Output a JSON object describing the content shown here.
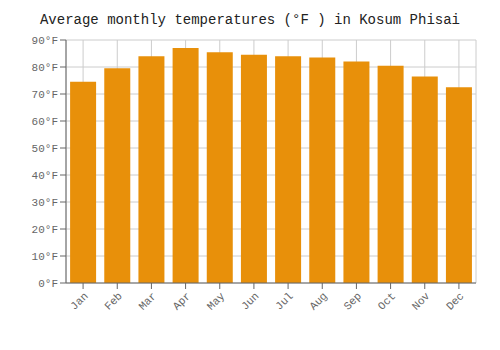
{
  "chart_data": {
    "type": "bar",
    "title": "Average monthly temperatures (°F ) in Kosum Phisai",
    "categories": [
      "Jan",
      "Feb",
      "Mar",
      "Apr",
      "May",
      "Jun",
      "Jul",
      "Aug",
      "Sep",
      "Oct",
      "Nov",
      "Dec"
    ],
    "values": [
      74.5,
      79.5,
      84.0,
      87.0,
      85.5,
      84.5,
      84.0,
      83.5,
      82.0,
      80.5,
      76.5,
      72.5
    ],
    "color": "#E8900A",
    "ylim": [
      0,
      90
    ],
    "yticks": [
      {
        "value": 0,
        "label": "0°F"
      },
      {
        "value": 10,
        "label": "10°F"
      },
      {
        "value": 20,
        "label": "20°F"
      },
      {
        "value": 30,
        "label": "30°F"
      },
      {
        "value": 40,
        "label": "40°F"
      },
      {
        "value": 50,
        "label": "50°F"
      },
      {
        "value": 60,
        "label": "60°F"
      },
      {
        "value": 70,
        "label": "70°F"
      },
      {
        "value": 80,
        "label": "80°F"
      },
      {
        "value": 90,
        "label": "90°F"
      }
    ],
    "grid": true
  }
}
